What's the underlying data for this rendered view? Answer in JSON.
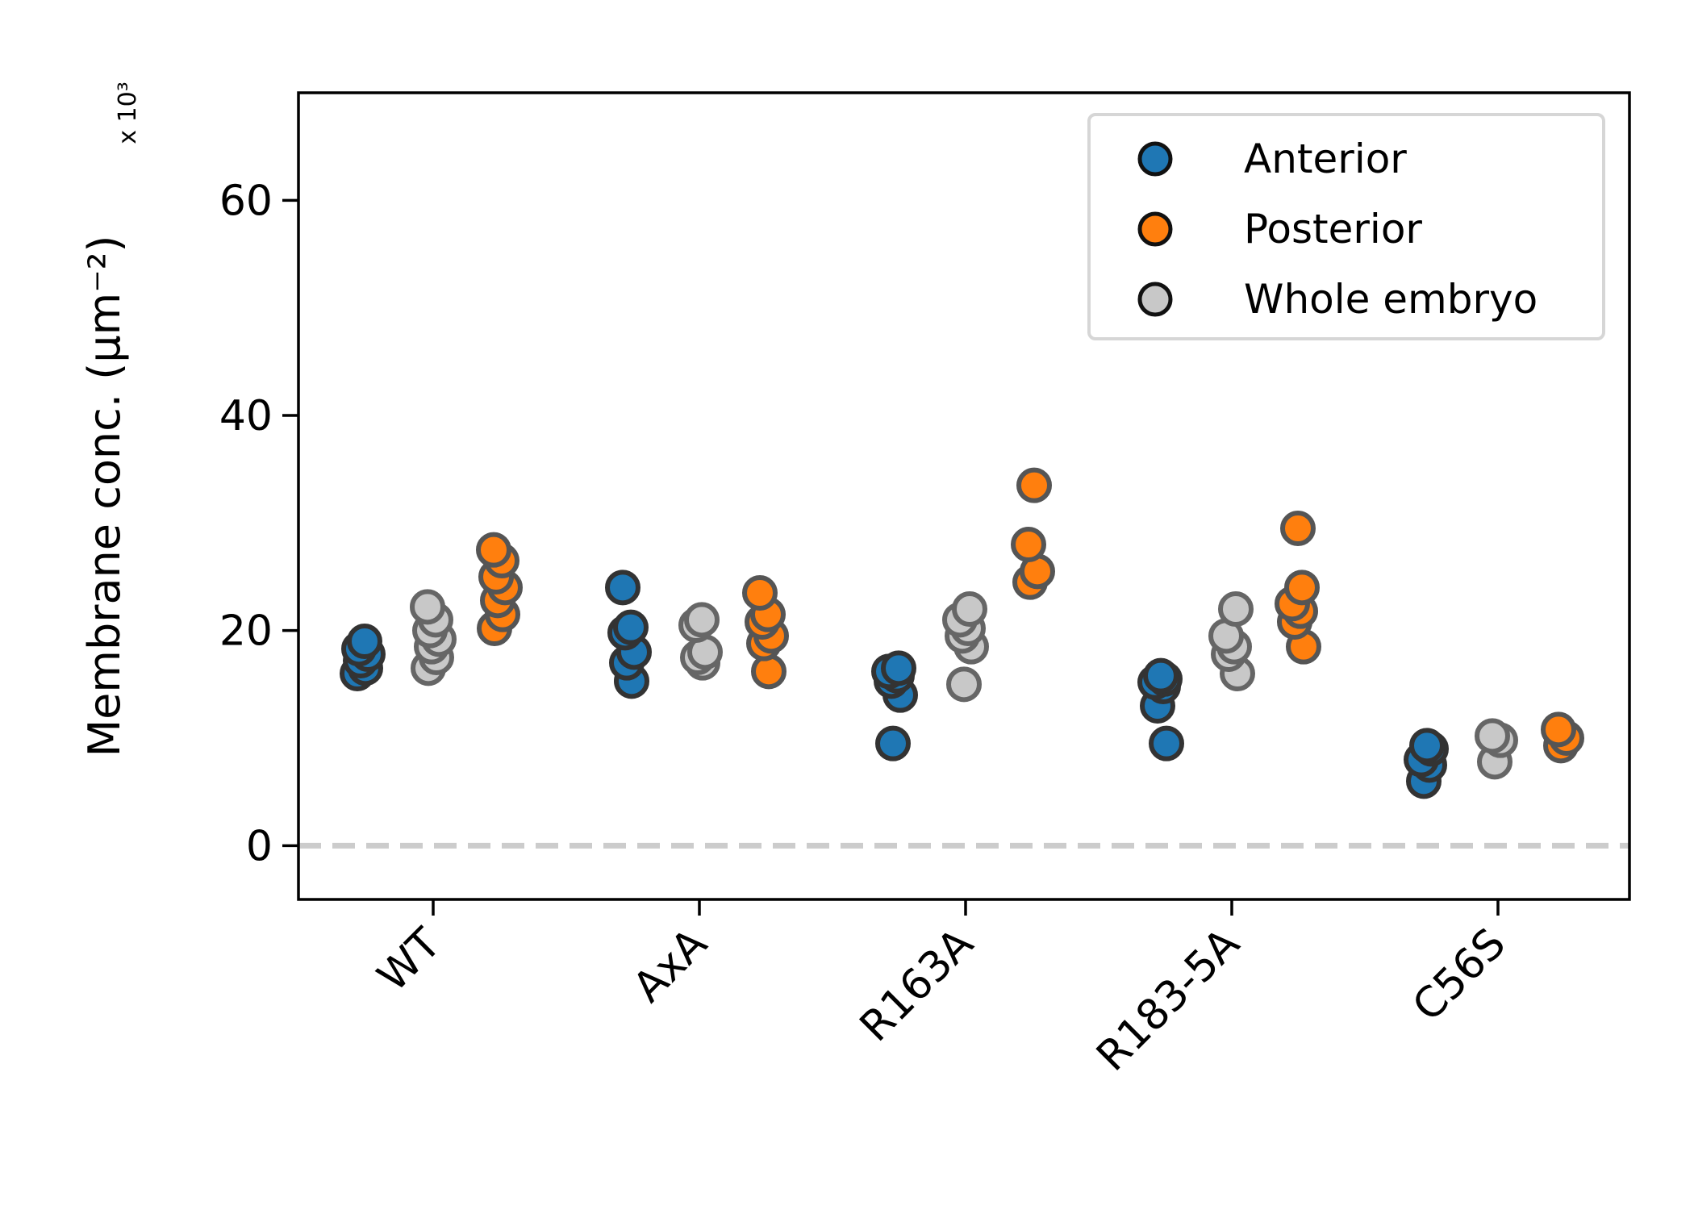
{
  "chart_data": {
    "type": "scatter",
    "title": "",
    "xlabel": "",
    "ylabel": "Membrane conc. (µm⁻²)",
    "y_multiplier": "x 10³",
    "ylim": [
      -5,
      70
    ],
    "yticks": [
      "0",
      "20",
      "40",
      "60"
    ],
    "reference_line_y": 0,
    "categories": [
      "WT",
      "AxA",
      "R163A",
      "R183-5A",
      "C56S"
    ],
    "legend_position": "top-right",
    "series": [
      {
        "name": "Anterior",
        "color": "#1f77b4",
        "values": [
          [
            16.0,
            16.5,
            17.2,
            17.8,
            18.3,
            19.0
          ],
          [
            15.3,
            17.0,
            18.0,
            19.8,
            20.3,
            24.0
          ],
          [
            9.5,
            14.0,
            15.3,
            15.8,
            16.2,
            16.5
          ],
          [
            9.5,
            13.0,
            14.8,
            15.2,
            15.5,
            15.8
          ],
          [
            6.0,
            7.5,
            8.0,
            9.0,
            9.3
          ]
        ]
      },
      {
        "name": "Whole embryo",
        "color": "#c8c8c8",
        "values": [
          [
            16.5,
            17.5,
            18.5,
            19.2,
            20.0,
            21.0,
            22.2
          ],
          [
            17.0,
            17.5,
            18.0,
            20.5,
            21.0
          ],
          [
            15.0,
            18.5,
            19.5,
            20.2,
            21.0,
            22.0
          ],
          [
            16.0,
            17.8,
            18.5,
            19.5,
            22.0
          ],
          [
            7.8,
            9.8,
            10.2
          ]
        ]
      },
      {
        "name": "Posterior",
        "color": "#ff7f0e",
        "values": [
          [
            20.2,
            21.5,
            22.8,
            24.0,
            25.0,
            26.5,
            27.5
          ],
          [
            16.2,
            18.8,
            19.5,
            20.8,
            21.5,
            23.5
          ],
          [
            24.5,
            25.5,
            28.0,
            33.5
          ],
          [
            18.5,
            20.8,
            21.8,
            22.5,
            24.0,
            29.5
          ],
          [
            9.3,
            10.0,
            10.8
          ]
        ]
      }
    ]
  }
}
